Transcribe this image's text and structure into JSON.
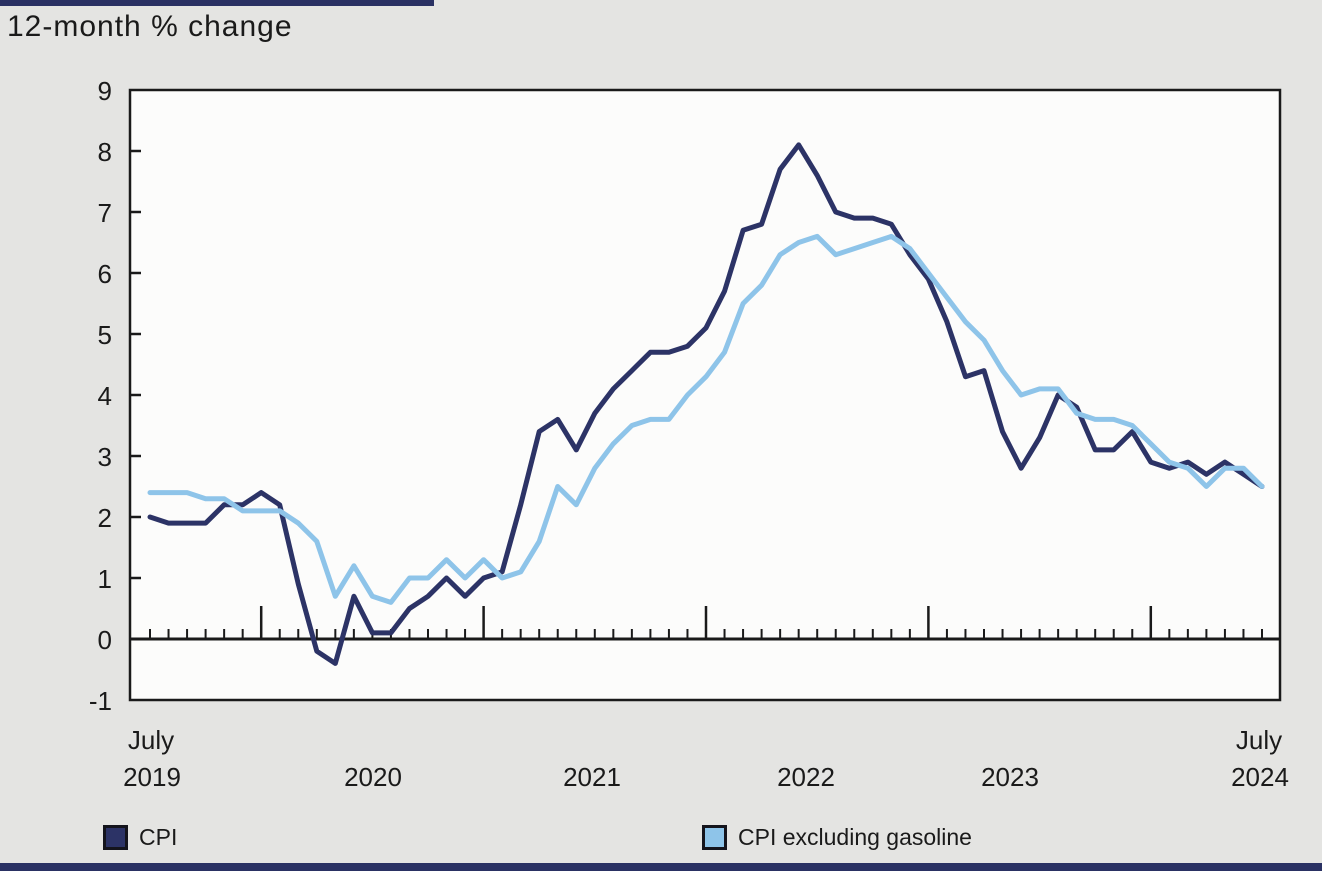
{
  "title": "12-month % change",
  "colors": {
    "cpi": "#2c3366",
    "cpi_ex_gasoline": "#8ec4e9",
    "background": "#e4e4e2",
    "plot_background": "#fcfcfb",
    "axis": "#1a1a1a",
    "accent_bar": "#2a3163"
  },
  "y_axis": {
    "ticks": [
      9,
      8,
      7,
      6,
      5,
      4,
      3,
      2,
      1,
      0,
      -1
    ],
    "min": -1,
    "max": 9
  },
  "x_axis": {
    "left_label_line1": "July",
    "left_label_line2": "2019",
    "year_labels": [
      "2020",
      "2021",
      "2022",
      "2023"
    ],
    "right_label_line1": "July",
    "right_label_line2": "2024"
  },
  "legend": [
    {
      "label": "CPI"
    },
    {
      "label": "CPI excluding gasoline"
    }
  ],
  "chart_data": {
    "type": "line",
    "title": "12-month % change",
    "x_start": "2019-07",
    "x_end": "2024-07",
    "frequency": "monthly",
    "points_count": 61,
    "ylim": [
      -1,
      9
    ],
    "grid": false,
    "legend_position": "bottom",
    "series": [
      {
        "name": "CPI",
        "color": "#2c3366",
        "values": [
          2.0,
          1.9,
          1.9,
          1.9,
          2.2,
          2.2,
          2.4,
          2.2,
          0.9,
          -0.2,
          -0.4,
          0.7,
          0.1,
          0.1,
          0.5,
          0.7,
          1.0,
          0.7,
          1.0,
          1.1,
          2.2,
          3.4,
          3.6,
          3.1,
          3.7,
          4.1,
          4.4,
          4.7,
          4.7,
          4.8,
          5.1,
          5.7,
          6.7,
          6.8,
          7.7,
          8.1,
          7.6,
          7.0,
          6.9,
          6.9,
          6.8,
          6.3,
          5.9,
          5.2,
          4.3,
          4.4,
          3.4,
          2.8,
          3.3,
          4.0,
          3.8,
          3.1,
          3.1,
          3.4,
          2.9,
          2.8,
          2.9,
          2.7,
          2.9,
          2.7,
          2.5
        ]
      },
      {
        "name": "CPI excluding gasoline",
        "color": "#8ec4e9",
        "values": [
          2.4,
          2.4,
          2.4,
          2.3,
          2.3,
          2.1,
          2.1,
          2.1,
          1.9,
          1.6,
          0.7,
          1.2,
          0.7,
          0.6,
          1.0,
          1.0,
          1.3,
          1.0,
          1.3,
          1.0,
          1.1,
          1.6,
          2.5,
          2.2,
          2.8,
          3.2,
          3.5,
          3.6,
          3.6,
          4.0,
          4.3,
          4.7,
          5.5,
          5.8,
          6.3,
          6.5,
          6.6,
          6.3,
          6.4,
          6.5,
          6.6,
          6.4,
          6.0,
          5.6,
          5.2,
          4.9,
          4.4,
          4.0,
          4.1,
          4.1,
          3.7,
          3.6,
          3.6,
          3.5,
          3.2,
          2.9,
          2.8,
          2.5,
          2.8,
          2.8,
          2.5
        ]
      }
    ]
  }
}
